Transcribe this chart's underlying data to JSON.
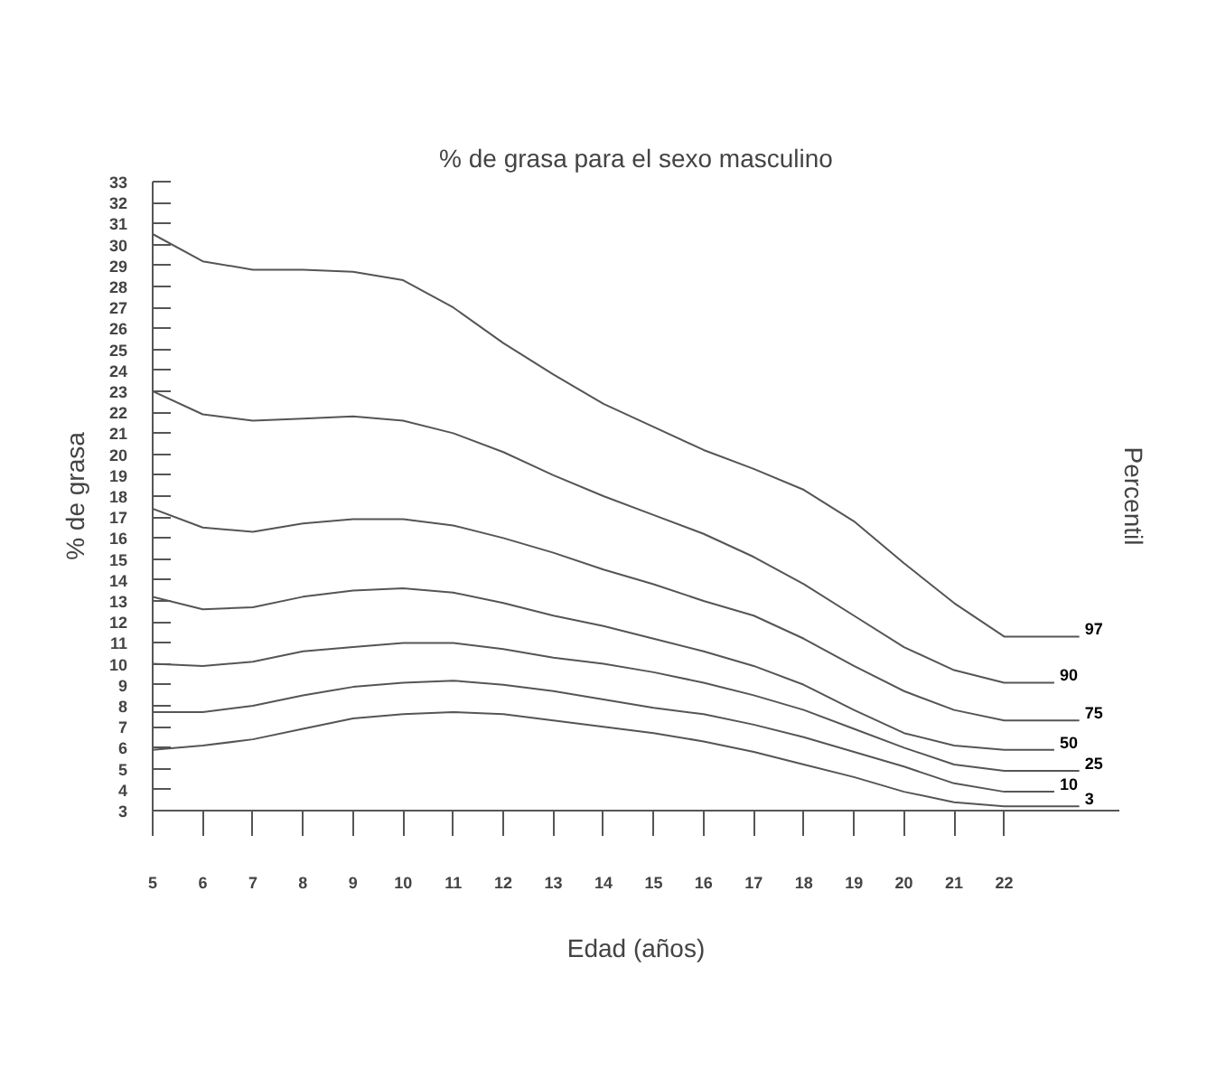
{
  "chart_data": {
    "type": "line",
    "title": "% de grasa para el sexo masculino",
    "xlabel": "Edad (años)",
    "ylabel": "% de grasa",
    "y2label": "Percentil",
    "xlim": [
      5,
      24.3
    ],
    "ylim": [
      3,
      33
    ],
    "xticks": [
      5,
      6,
      7,
      8,
      9,
      10,
      11,
      12,
      13,
      14,
      15,
      16,
      17,
      18,
      19,
      20,
      21,
      22
    ],
    "yticks": [
      3,
      4,
      5,
      6,
      7,
      8,
      9,
      10,
      11,
      12,
      13,
      14,
      15,
      16,
      17,
      18,
      19,
      20,
      21,
      22,
      23,
      24,
      25,
      26,
      27,
      28,
      29,
      30,
      31,
      32,
      33
    ],
    "grid": false,
    "legend": false,
    "marker": "none",
    "line_style": "solid",
    "series": [
      {
        "name": "97",
        "color": "#555555",
        "x": [
          5,
          6,
          7,
          8,
          9,
          10,
          11,
          12,
          13,
          14,
          15,
          16,
          17,
          18,
          19,
          20,
          21,
          22,
          23.5
        ],
        "values": [
          30.5,
          29.2,
          28.8,
          28.8,
          28.7,
          28.3,
          27.0,
          25.3,
          23.8,
          22.4,
          21.3,
          20.2,
          19.3,
          18.3,
          16.8,
          14.8,
          12.9,
          11.3,
          11.3
        ]
      },
      {
        "name": "90",
        "color": "#555555",
        "x": [
          5,
          6,
          7,
          8,
          9,
          10,
          11,
          12,
          13,
          14,
          15,
          16,
          17,
          18,
          19,
          20,
          21,
          22,
          23.0
        ],
        "values": [
          23.0,
          21.9,
          21.6,
          21.7,
          21.8,
          21.6,
          21.0,
          20.1,
          19.0,
          18.0,
          17.1,
          16.2,
          15.1,
          13.8,
          12.3,
          10.8,
          9.7,
          9.1,
          9.1
        ]
      },
      {
        "name": "75",
        "color": "#555555",
        "x": [
          5,
          6,
          7,
          8,
          9,
          10,
          11,
          12,
          13,
          14,
          15,
          16,
          17,
          18,
          19,
          20,
          21,
          22,
          23.5
        ],
        "values": [
          17.4,
          16.5,
          16.3,
          16.7,
          16.9,
          16.9,
          16.6,
          16.0,
          15.3,
          14.5,
          13.8,
          13.0,
          12.3,
          11.2,
          9.9,
          8.7,
          7.8,
          7.3,
          7.3
        ]
      },
      {
        "name": "50",
        "color": "#555555",
        "x": [
          5,
          6,
          7,
          8,
          9,
          10,
          11,
          12,
          13,
          14,
          15,
          16,
          17,
          18,
          19,
          20,
          21,
          22,
          23.0
        ],
        "values": [
          13.2,
          12.6,
          12.7,
          13.2,
          13.5,
          13.6,
          13.4,
          12.9,
          12.3,
          11.8,
          11.2,
          10.6,
          9.9,
          9.0,
          7.8,
          6.7,
          6.1,
          5.9,
          5.9
        ]
      },
      {
        "name": "25",
        "color": "#555555",
        "x": [
          5,
          6,
          7,
          8,
          9,
          10,
          11,
          12,
          13,
          14,
          15,
          16,
          17,
          18,
          19,
          20,
          21,
          22,
          23.5
        ],
        "values": [
          10.0,
          9.9,
          10.1,
          10.6,
          10.8,
          11.0,
          11.0,
          10.7,
          10.3,
          10.0,
          9.6,
          9.1,
          8.5,
          7.8,
          6.9,
          6.0,
          5.2,
          4.9,
          4.9
        ]
      },
      {
        "name": "10",
        "color": "#555555",
        "x": [
          5,
          6,
          7,
          8,
          9,
          10,
          11,
          12,
          13,
          14,
          15,
          16,
          17,
          18,
          19,
          20,
          21,
          22,
          23.0
        ],
        "values": [
          7.7,
          7.7,
          8.0,
          8.5,
          8.9,
          9.1,
          9.2,
          9.0,
          8.7,
          8.3,
          7.9,
          7.6,
          7.1,
          6.5,
          5.8,
          5.1,
          4.3,
          3.9,
          3.9
        ]
      },
      {
        "name": "3",
        "color": "#555555",
        "x": [
          5,
          6,
          7,
          8,
          9,
          10,
          11,
          12,
          13,
          14,
          15,
          16,
          17,
          18,
          19,
          20,
          21,
          22,
          23.5
        ],
        "values": [
          5.9,
          6.1,
          6.4,
          6.9,
          7.4,
          7.6,
          7.7,
          7.6,
          7.3,
          7.0,
          6.7,
          6.3,
          5.8,
          5.2,
          4.6,
          3.9,
          3.4,
          3.2,
          3.2
        ]
      }
    ]
  }
}
